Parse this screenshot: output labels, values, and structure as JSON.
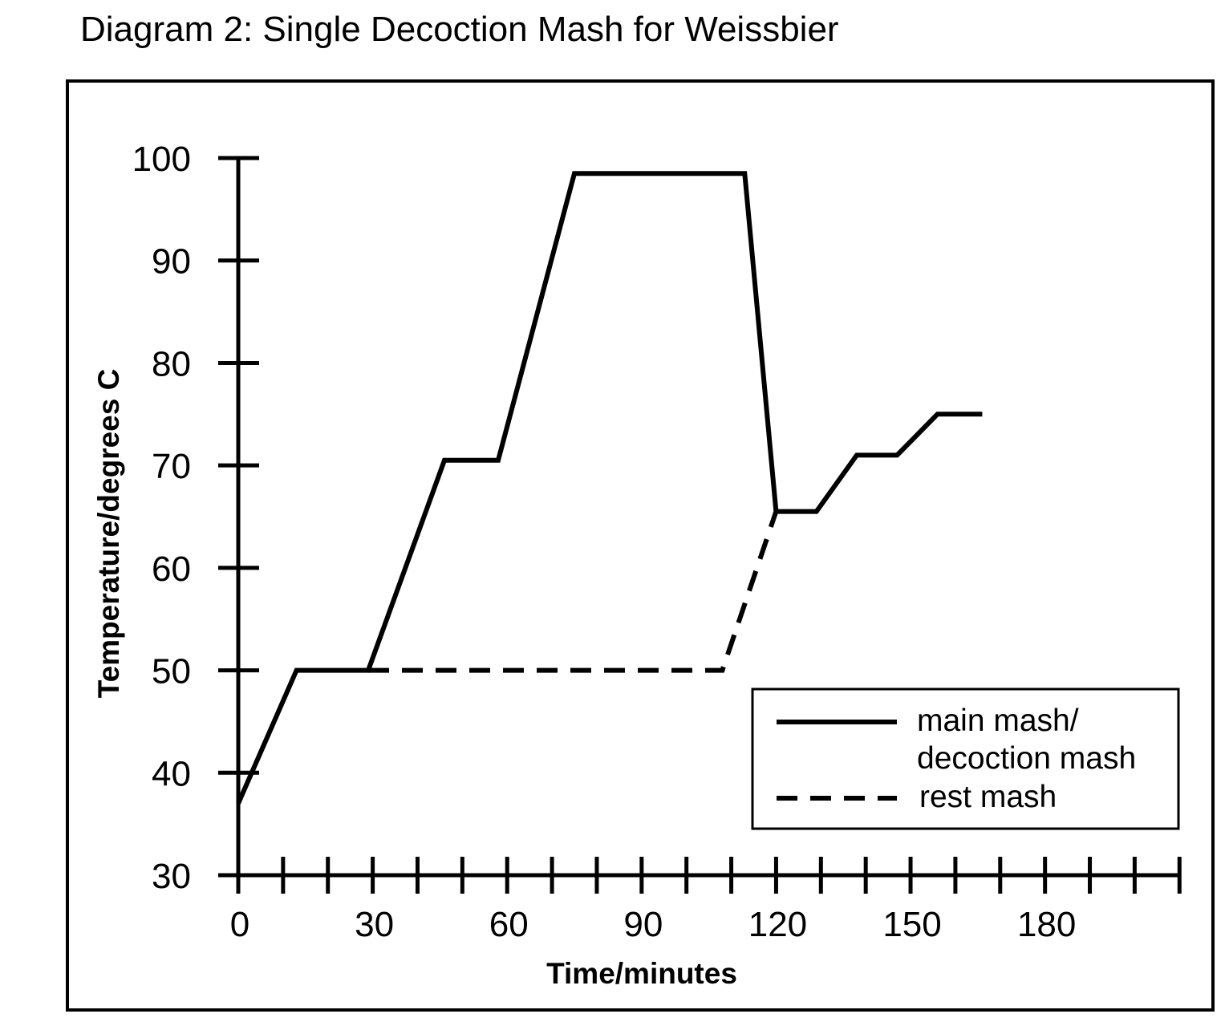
{
  "title": "Diagram 2: Single Decoction Mash for Weissbier",
  "chart_data": {
    "type": "line",
    "title": "Diagram 2: Single Decoction Mash for Weissbier",
    "xlabel": "Time/minutes",
    "ylabel": "Temperature/degrees C",
    "xlim": [
      0,
      210
    ],
    "ylim": [
      30,
      100
    ],
    "x_ticks_labeled": [
      0,
      30,
      60,
      90,
      120,
      150,
      180
    ],
    "x_tick_step": 10,
    "y_ticks": [
      30,
      40,
      50,
      60,
      70,
      80,
      90,
      100
    ],
    "grid": false,
    "legend_position": "bottom-right",
    "series": [
      {
        "name": "main mash/ decoction mash",
        "legend_lines": [
          "main mash/",
          "decoction mash"
        ],
        "style": "solid",
        "x": [
          0,
          13,
          29,
          46,
          58,
          75,
          113,
          120,
          129,
          138,
          147,
          156,
          166
        ],
        "y": [
          37,
          50,
          50,
          70.5,
          70.5,
          98.5,
          98.5,
          65.5,
          65.5,
          71,
          71,
          75,
          75
        ]
      },
      {
        "name": "rest mash",
        "legend_lines": [
          "rest mash"
        ],
        "style": "dashed",
        "x": [
          29,
          108,
          120
        ],
        "y": [
          50,
          50,
          65.5
        ]
      }
    ]
  }
}
